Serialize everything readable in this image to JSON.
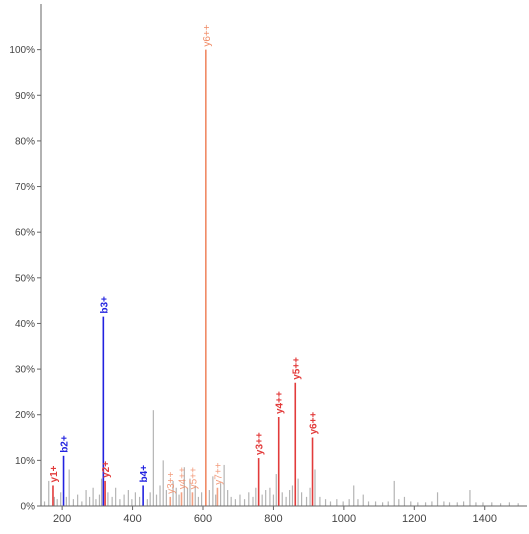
{
  "chart_data": {
    "type": "spectrum",
    "xlim": [
      140,
      1520
    ],
    "ylim": [
      0,
      110
    ],
    "x_ticks": [
      200,
      400,
      600,
      800,
      1000,
      1200,
      1400
    ],
    "x_tick_labels": [
      "200",
      "400",
      "600",
      "800",
      "1000",
      "1200",
      "1400"
    ],
    "y_ticks": [
      0,
      10,
      20,
      30,
      40,
      50,
      60,
      70,
      80,
      90,
      100
    ],
    "y_tick_labels": [
      "0%",
      "10%",
      "20%",
      "30%",
      "40%",
      "50%",
      "60%",
      "70%",
      "80%",
      "90%",
      "100%"
    ],
    "colors": {
      "background_peak": "#b4b4b4",
      "b_ion": "#2222e0",
      "y_ion": "#e23b3b",
      "y_double": "#f08a65",
      "axis": "#666666"
    },
    "annotated_peaks": [
      {
        "x": 174,
        "y": 4.5,
        "label": "y1+",
        "series": "y_single"
      },
      {
        "x": 204,
        "y": 11.0,
        "label": "b2+",
        "series": "b"
      },
      {
        "x": 317,
        "y": 41.5,
        "label": "b3+",
        "series": "b"
      },
      {
        "x": 322,
        "y": 5.5,
        "label": "y2+",
        "series": "y_single"
      },
      {
        "x": 430,
        "y": 4.5,
        "label": "b4+",
        "series": "b"
      },
      {
        "x": 507,
        "y": 2.0,
        "label": "y3++",
        "series": "y_double"
      },
      {
        "x": 539,
        "y": 3.0,
        "label": "y4++",
        "series": "y_double"
      },
      {
        "x": 570,
        "y": 3.0,
        "label": "y5++",
        "series": "y_double"
      },
      {
        "x": 608,
        "y": 100.0,
        "label": "y6++",
        "series": "y_double"
      },
      {
        "x": 641,
        "y": 4.0,
        "label": "y7++",
        "series": "y_double"
      },
      {
        "x": 758,
        "y": 10.5,
        "label": "y3++",
        "series": "y_single"
      },
      {
        "x": 815,
        "y": 19.5,
        "label": "y4++",
        "series": "y_single"
      },
      {
        "x": 862,
        "y": 27.0,
        "label": "y5++",
        "series": "y_single"
      },
      {
        "x": 911,
        "y": 15.0,
        "label": "y6++",
        "series": "y_single"
      }
    ],
    "background_peaks": [
      {
        "x": 150,
        "y": 1.0
      },
      {
        "x": 162,
        "y": 5.5
      },
      {
        "x": 178,
        "y": 2.0
      },
      {
        "x": 186,
        "y": 1.5
      },
      {
        "x": 196,
        "y": 3.0
      },
      {
        "x": 212,
        "y": 2.0
      },
      {
        "x": 220,
        "y": 8.0
      },
      {
        "x": 232,
        "y": 1.5
      },
      {
        "x": 244,
        "y": 2.5
      },
      {
        "x": 256,
        "y": 1.0
      },
      {
        "x": 268,
        "y": 3.5
      },
      {
        "x": 278,
        "y": 2.0
      },
      {
        "x": 288,
        "y": 4.0
      },
      {
        "x": 296,
        "y": 1.5
      },
      {
        "x": 306,
        "y": 2.5
      },
      {
        "x": 312,
        "y": 6.0
      },
      {
        "x": 330,
        "y": 3.0
      },
      {
        "x": 342,
        "y": 2.0
      },
      {
        "x": 352,
        "y": 4.0
      },
      {
        "x": 364,
        "y": 1.5
      },
      {
        "x": 376,
        "y": 2.5
      },
      {
        "x": 388,
        "y": 3.5
      },
      {
        "x": 398,
        "y": 1.5
      },
      {
        "x": 408,
        "y": 3.0
      },
      {
        "x": 420,
        "y": 2.0
      },
      {
        "x": 442,
        "y": 1.5
      },
      {
        "x": 450,
        "y": 3.0
      },
      {
        "x": 459,
        "y": 21.0
      },
      {
        "x": 468,
        "y": 2.5
      },
      {
        "x": 478,
        "y": 4.5
      },
      {
        "x": 487,
        "y": 10.0
      },
      {
        "x": 496,
        "y": 3.5
      },
      {
        "x": 515,
        "y": 5.5
      },
      {
        "x": 524,
        "y": 4.0
      },
      {
        "x": 532,
        "y": 2.5
      },
      {
        "x": 547,
        "y": 8.5
      },
      {
        "x": 556,
        "y": 4.0
      },
      {
        "x": 563,
        "y": 6.0
      },
      {
        "x": 578,
        "y": 4.5
      },
      {
        "x": 587,
        "y": 2.0
      },
      {
        "x": 596,
        "y": 3.0
      },
      {
        "x": 618,
        "y": 3.5
      },
      {
        "x": 628,
        "y": 6.5
      },
      {
        "x": 636,
        "y": 2.5
      },
      {
        "x": 650,
        "y": 5.0
      },
      {
        "x": 660,
        "y": 9.0
      },
      {
        "x": 670,
        "y": 3.5
      },
      {
        "x": 680,
        "y": 2.0
      },
      {
        "x": 692,
        "y": 1.5
      },
      {
        "x": 705,
        "y": 2.5
      },
      {
        "x": 718,
        "y": 1.5
      },
      {
        "x": 730,
        "y": 3.0
      },
      {
        "x": 742,
        "y": 2.0
      },
      {
        "x": 750,
        "y": 4.0
      },
      {
        "x": 768,
        "y": 2.5
      },
      {
        "x": 778,
        "y": 3.5
      },
      {
        "x": 790,
        "y": 4.0
      },
      {
        "x": 800,
        "y": 2.5
      },
      {
        "x": 808,
        "y": 7.0
      },
      {
        "x": 825,
        "y": 3.0
      },
      {
        "x": 836,
        "y": 2.0
      },
      {
        "x": 846,
        "y": 3.5
      },
      {
        "x": 854,
        "y": 4.5
      },
      {
        "x": 870,
        "y": 6.0
      },
      {
        "x": 880,
        "y": 3.0
      },
      {
        "x": 894,
        "y": 2.0
      },
      {
        "x": 904,
        "y": 4.0
      },
      {
        "x": 918,
        "y": 8.0
      },
      {
        "x": 932,
        "y": 2.0
      },
      {
        "x": 948,
        "y": 1.5
      },
      {
        "x": 962,
        "y": 1.0
      },
      {
        "x": 980,
        "y": 1.5
      },
      {
        "x": 998,
        "y": 1.0
      },
      {
        "x": 1015,
        "y": 1.5
      },
      {
        "x": 1028,
        "y": 4.5
      },
      {
        "x": 1040,
        "y": 1.5
      },
      {
        "x": 1055,
        "y": 2.5
      },
      {
        "x": 1070,
        "y": 1.0
      },
      {
        "x": 1090,
        "y": 1.0
      },
      {
        "x": 1110,
        "y": 0.8
      },
      {
        "x": 1126,
        "y": 1.0
      },
      {
        "x": 1143,
        "y": 5.5
      },
      {
        "x": 1156,
        "y": 1.5
      },
      {
        "x": 1172,
        "y": 2.0
      },
      {
        "x": 1190,
        "y": 1.0
      },
      {
        "x": 1210,
        "y": 0.8
      },
      {
        "x": 1232,
        "y": 0.8
      },
      {
        "x": 1250,
        "y": 1.0
      },
      {
        "x": 1266,
        "y": 3.0
      },
      {
        "x": 1284,
        "y": 1.0
      },
      {
        "x": 1300,
        "y": 0.8
      },
      {
        "x": 1322,
        "y": 0.8
      },
      {
        "x": 1340,
        "y": 1.0
      },
      {
        "x": 1358,
        "y": 3.5
      },
      {
        "x": 1375,
        "y": 0.8
      },
      {
        "x": 1395,
        "y": 0.8
      },
      {
        "x": 1420,
        "y": 0.8
      },
      {
        "x": 1445,
        "y": 0.6
      },
      {
        "x": 1470,
        "y": 0.8
      },
      {
        "x": 1495,
        "y": 0.6
      }
    ]
  }
}
